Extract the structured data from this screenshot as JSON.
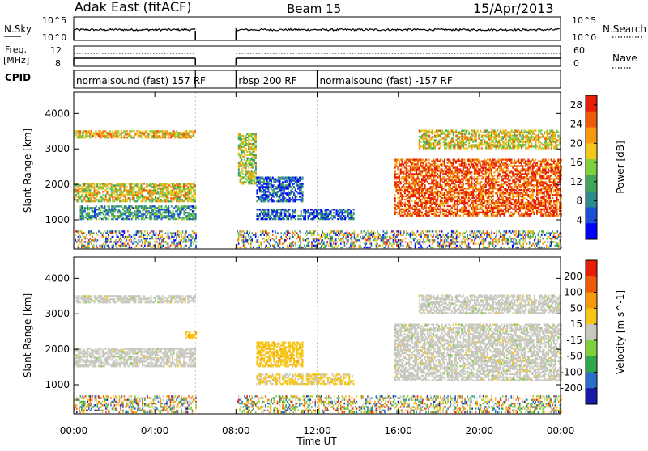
{
  "header": {
    "title": "Adak East (fitACF)",
    "beam": "Beam 15",
    "date": "15/Apr/2013"
  },
  "strips": {
    "nsky_label": "N.Sky",
    "nsky_ticks": [
      "10^5",
      "10^0"
    ],
    "nsearch_label": "N.Search",
    "nsearch_ticks": [
      "10^5",
      "10^0"
    ],
    "freq_label_line1": "Freq.",
    "freq_label_line2": "[MHz]",
    "freq_ticks": [
      "12",
      "8"
    ],
    "nave_label": "Nave",
    "nave_ticks": [
      "60",
      "0"
    ],
    "cpid_label": "CPID",
    "cpid_segments": [
      {
        "label": "normalsound (fast) 157 RF",
        "start": "00:00",
        "end": "06:00"
      },
      {
        "label": "rbsp 200 RF",
        "start": "08:00",
        "end": "12:00"
      },
      {
        "label": "normalsound (fast) -157 RF",
        "start": "12:00",
        "end": "24:00"
      }
    ]
  },
  "chart_data": [
    {
      "type": "heatmap",
      "title": "",
      "xlabel": "Time UT",
      "ylabel": "Slant Range [km]",
      "xlim": [
        0,
        24
      ],
      "ylim": [
        180,
        4600
      ],
      "x_ticks": [
        "00:00",
        "04:00",
        "08:00",
        "12:00",
        "16:00",
        "20:00",
        "00:00"
      ],
      "y_ticks": [
        "1000",
        "2000",
        "3000",
        "4000"
      ],
      "colorbar": {
        "label": "Power [dB]",
        "ticks": [
          "4",
          "8",
          "12",
          "16",
          "20",
          "24",
          "28"
        ],
        "range": [
          0,
          30
        ],
        "colors": [
          "#0000ff",
          "#1a4fd6",
          "#2e8b8b",
          "#3fa65a",
          "#7fd13b",
          "#f2c81c",
          "#f59a0e",
          "#ee5a0a",
          "#e61e05"
        ]
      },
      "data_gap": [
        "06:00",
        "08:00"
      ],
      "echo_bands": [
        {
          "t0": 0.0,
          "t1": 6.0,
          "r0": 3300,
          "r1": 3500,
          "level": 20
        },
        {
          "t0": 0.0,
          "t1": 6.0,
          "r0": 1500,
          "r1": 2000,
          "level": 18
        },
        {
          "t0": 0.3,
          "t1": 6.0,
          "r0": 1000,
          "r1": 1400,
          "level": 10
        },
        {
          "t0": 8.1,
          "t1": 9.0,
          "r0": 2000,
          "r1": 3400,
          "level": 16
        },
        {
          "t0": 9.0,
          "t1": 11.3,
          "r0": 1500,
          "r1": 2200,
          "level": 6
        },
        {
          "t0": 9.0,
          "t1": 13.8,
          "r0": 1000,
          "r1": 1300,
          "level": 6
        },
        {
          "t0": 15.8,
          "t1": 24.0,
          "r0": 1100,
          "r1": 2700,
          "level": 26
        },
        {
          "t0": 17.0,
          "t1": 24.0,
          "r0": 3000,
          "r1": 3500,
          "level": 18
        }
      ]
    },
    {
      "type": "heatmap",
      "title": "",
      "xlabel": "Time UT",
      "ylabel": "Slant Range [km]",
      "xlim": [
        0,
        24
      ],
      "ylim": [
        180,
        4600
      ],
      "x_ticks": [
        "00:00",
        "04:00",
        "08:00",
        "12:00",
        "16:00",
        "20:00",
        "00:00"
      ],
      "y_ticks": [
        "1000",
        "2000",
        "3000",
        "4000"
      ],
      "colorbar": {
        "label": "Velocity [m s^-1]",
        "ticks": [
          "200",
          "100",
          "50",
          "15",
          "-15",
          "-50",
          "-100",
          "-200"
        ],
        "range": [
          -250,
          250
        ],
        "colors": [
          "#1a1aa6",
          "#2a70c8",
          "#2ea84a",
          "#7fd13b",
          "#c8c8c0",
          "#f5c518",
          "#f59a0e",
          "#ee5a0a",
          "#e61e05"
        ]
      },
      "data_gap": [
        "06:00",
        "08:00"
      ],
      "echo_bands": [
        {
          "t0": 0.0,
          "t1": 6.0,
          "r0": 3300,
          "r1": 3500,
          "level": 0
        },
        {
          "t0": 0.0,
          "t1": 6.0,
          "r0": 1500,
          "r1": 2000,
          "level": 0
        },
        {
          "t0": 5.5,
          "t1": 6.0,
          "r0": 2300,
          "r1": 2500,
          "level": 60
        },
        {
          "t0": 9.0,
          "t1": 11.3,
          "r0": 1500,
          "r1": 2200,
          "level": 60
        },
        {
          "t0": 9.0,
          "t1": 13.8,
          "r0": 1000,
          "r1": 1300,
          "level": 40
        },
        {
          "t0": 15.8,
          "t1": 24.0,
          "r0": 1100,
          "r1": 2700,
          "level": 0
        },
        {
          "t0": 17.0,
          "t1": 24.0,
          "r0": 3000,
          "r1": 3500,
          "level": 0
        }
      ]
    }
  ]
}
